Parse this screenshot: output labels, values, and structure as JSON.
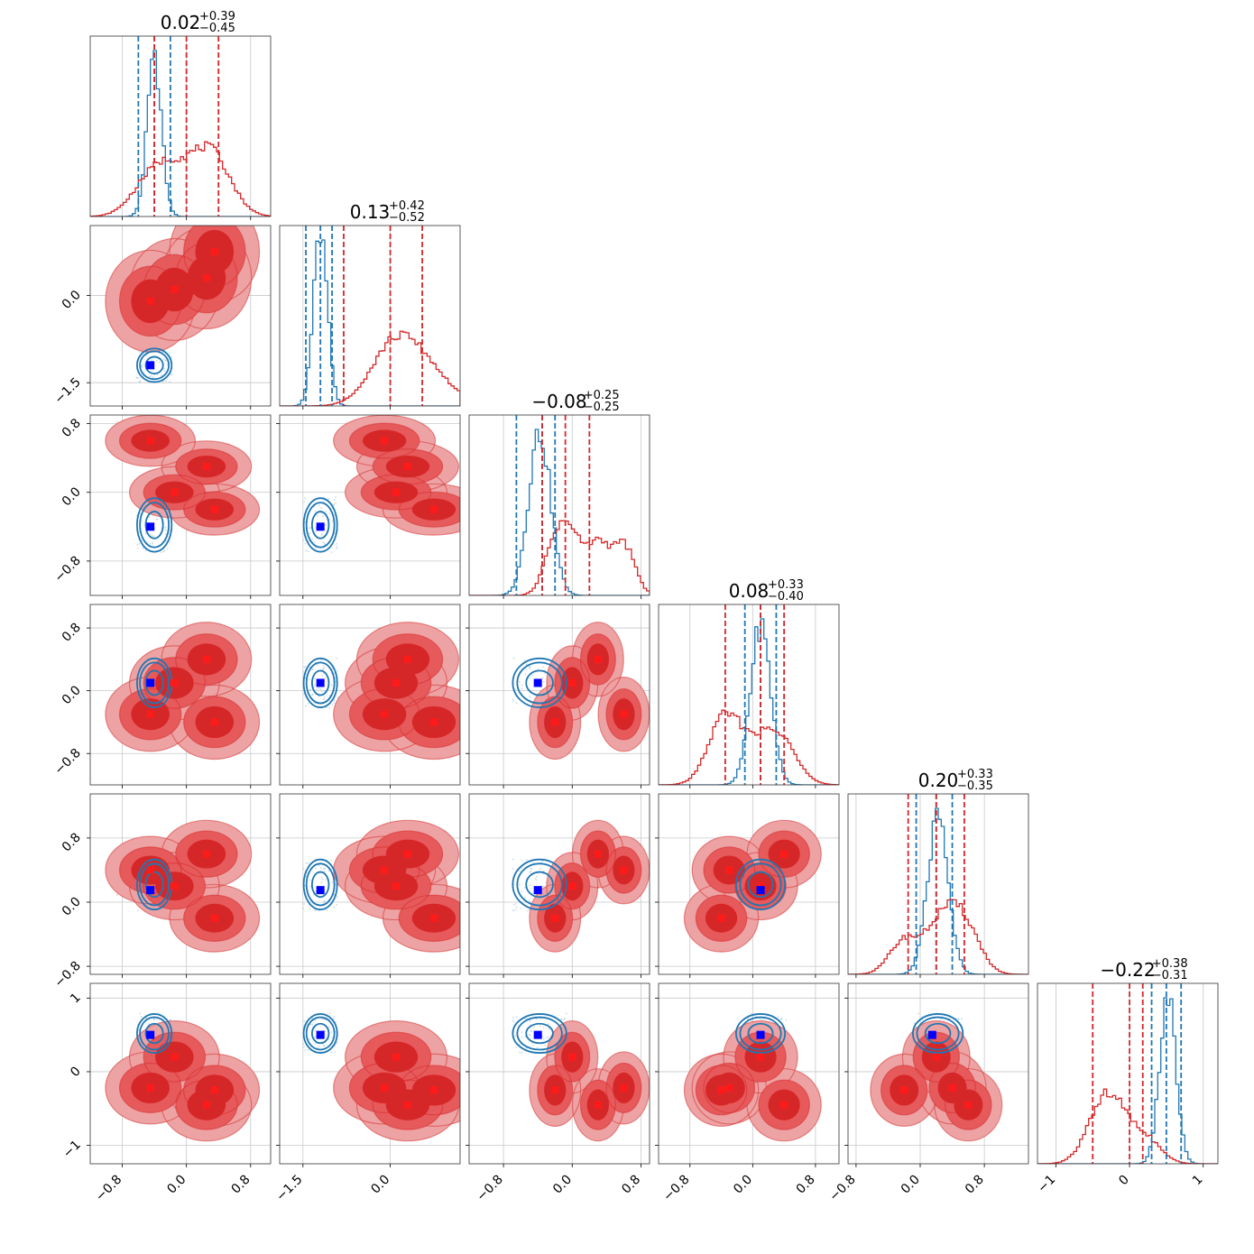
{
  "chart_data": {
    "type": "corner",
    "ndim": 6,
    "colors": {
      "red": "#d62728",
      "blue": "#1f77b4",
      "red_fill": "#eda3a4",
      "red_mid": "#e65a5c",
      "grid": "#c8c8c8",
      "axis": "#333333"
    },
    "grid": true,
    "titles": [
      {
        "value": "0.02",
        "plus": "+0.39",
        "minus": "−0.45"
      },
      {
        "value": "0.13",
        "plus": "+0.42",
        "minus": "−0.52"
      },
      {
        "value": "−0.08",
        "plus": "+0.25",
        "minus": "−0.25"
      },
      {
        "value": "0.08",
        "plus": "+0.33",
        "minus": "−0.40"
      },
      {
        "value": "0.20",
        "plus": "+0.33",
        "minus": "−0.35"
      },
      {
        "value": "−0.22",
        "plus": "+0.38",
        "minus": "−0.31"
      }
    ],
    "ranges": [
      [
        -1.2,
        1.05
      ],
      [
        -1.9,
        1.2
      ],
      [
        -1.2,
        0.9
      ],
      [
        -1.2,
        1.1
      ],
      [
        -0.9,
        1.35
      ],
      [
        -1.25,
        1.2
      ]
    ],
    "ticks": [
      {
        "values": [
          -0.8,
          0.0,
          0.8
        ],
        "labels": [
          "−0.8",
          "0.0",
          "0.8"
        ]
      },
      {
        "values": [
          -1.5,
          0.0
        ],
        "labels": [
          "−1.5",
          "0.0"
        ]
      },
      {
        "values": [
          -0.8,
          0.0,
          0.8
        ],
        "labels": [
          "−0.8",
          "0.0",
          "0.8"
        ]
      },
      {
        "values": [
          -0.8,
          0.0,
          0.8
        ],
        "labels": [
          "−0.8",
          "0.0",
          "0.8"
        ]
      },
      {
        "values": [
          -0.8,
          0.0,
          0.8
        ],
        "labels": [
          "−0.8",
          "0.0",
          "0.8"
        ]
      },
      {
        "values": [
          -1,
          0,
          1
        ],
        "labels": [
          "−1",
          "0",
          "1"
        ]
      }
    ],
    "quantiles_blue": [
      [
        -0.6,
        -0.4,
        -0.2
      ],
      [
        -1.45,
        -1.2,
        -1.0
      ],
      [
        -0.65,
        -0.35,
        -0.2
      ],
      [
        -0.1,
        0.1,
        0.3
      ],
      [
        -0.05,
        0.2,
        0.4
      ],
      [
        0.3,
        0.5,
        0.7
      ]
    ],
    "quantiles_red": [
      [
        -0.4,
        0.0,
        0.4
      ],
      [
        -0.8,
        0.0,
        0.55
      ],
      [
        -0.35,
        -0.08,
        0.2
      ],
      [
        -0.35,
        0.1,
        0.4
      ],
      [
        -0.15,
        0.2,
        0.55
      ],
      [
        -0.5,
        0.0,
        0.18
      ]
    ],
    "blue_truth": [
      -0.45,
      -1.2,
      -0.4,
      0.1,
      0.15,
      0.5
    ],
    "red_points": [
      [
        -0.45,
        -0.1,
        0.6,
        -0.3,
        0.4,
        -0.22
      ],
      [
        -0.15,
        0.1,
        0.0,
        0.1,
        0.2,
        0.2
      ],
      [
        0.25,
        0.3,
        0.3,
        0.4,
        0.6,
        -0.45
      ],
      [
        0.35,
        0.75,
        -0.2,
        -0.4,
        -0.2,
        -0.25
      ]
    ],
    "red_mode": {
      "mean": [
        0.0,
        0.0,
        -0.08,
        0.1,
        0.2,
        -0.22
      ],
      "sd": [
        0.32,
        0.5,
        0.17,
        0.27,
        0.24,
        0.28
      ]
    },
    "blue_mode": {
      "mean": [
        -0.4,
        -1.2,
        -0.38,
        0.1,
        0.22,
        0.52
      ],
      "sd": [
        0.09,
        0.12,
        0.13,
        0.13,
        0.13,
        0.11
      ]
    }
  }
}
